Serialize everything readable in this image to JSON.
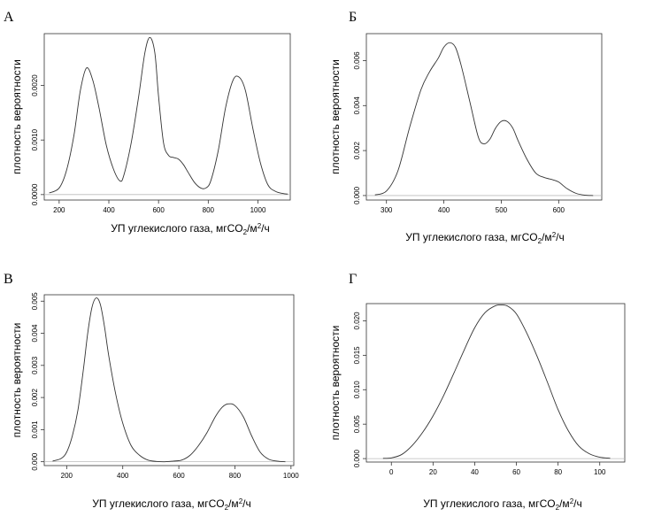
{
  "chart_data": [
    {
      "type": "line",
      "panel_label": "А",
      "xlabel_main": "УП углекислого газа, мгCO",
      "xlabel_sub": "2",
      "xlabel_mid": "/м",
      "xlabel_sup": "2",
      "xlabel_end": "/ч",
      "ylabel": "плотность вероятности",
      "xlim": [
        140,
        1130
      ],
      "ylim": [
        -0.0001,
        0.00295
      ],
      "xticks": [
        "200",
        "400",
        "600",
        "800",
        "1000"
      ],
      "yticks": [
        "0.0000",
        "0.0010",
        "0.0020"
      ],
      "series": [
        {
          "x": [
            160,
            200,
            230,
            260,
            285,
            310,
            335,
            360,
            390,
            420,
            445,
            460,
            490,
            520,
            545,
            565,
            585,
            600,
            620,
            640,
            660,
            680,
            700,
            720,
            745,
            770,
            790,
            810,
            840,
            870,
            900,
            925,
            950,
            980,
            1010,
            1040,
            1070,
            1100,
            1120
          ],
          "y": [
            3e-05,
            0.00012,
            0.00045,
            0.0011,
            0.0019,
            0.00232,
            0.0021,
            0.0016,
            0.0009,
            0.00045,
            0.00025,
            0.00035,
            0.00095,
            0.0018,
            0.0026,
            0.00288,
            0.0026,
            0.0018,
            0.00095,
            0.00072,
            0.00068,
            0.00065,
            0.00055,
            0.0004,
            0.00022,
            0.00012,
            0.00012,
            0.00025,
            0.0008,
            0.0016,
            0.0021,
            0.00215,
            0.0019,
            0.0012,
            0.00058,
            0.00018,
            6e-05,
            2e-05,
            1e-05
          ]
        }
      ]
    },
    {
      "type": "line",
      "panel_label": "Б",
      "xlabel_main": "УП углекислого газа, мгCO",
      "xlabel_sub": "2",
      "xlabel_mid": "/м",
      "xlabel_sup": "2",
      "xlabel_end": "/ч",
      "ylabel": "плотность вероятности",
      "xlim": [
        265,
        675
      ],
      "ylim": [
        -0.0002,
        0.0072
      ],
      "xticks": [
        "300",
        "400",
        "500",
        "600"
      ],
      "yticks": [
        "0.000",
        "0.002",
        "0.004",
        "0.006"
      ],
      "series": [
        {
          "x": [
            280,
            300,
            320,
            340,
            360,
            375,
            390,
            400,
            410,
            420,
            430,
            445,
            460,
            470,
            480,
            490,
            500,
            510,
            520,
            530,
            545,
            560,
            575,
            590,
            600,
            615,
            630,
            645,
            660
          ],
          "y": [
            3e-05,
            0.0002,
            0.0011,
            0.003,
            0.0047,
            0.0055,
            0.0061,
            0.0066,
            0.0068,
            0.0066,
            0.0058,
            0.0042,
            0.0026,
            0.0023,
            0.0025,
            0.003,
            0.0033,
            0.0033,
            0.003,
            0.0024,
            0.0016,
            0.001,
            0.0008,
            0.0007,
            0.0006,
            0.0003,
            0.0001,
            2e-05,
            0.0
          ]
        }
      ]
    },
    {
      "type": "line",
      "panel_label": "В",
      "xlabel_main": "УП углекислого газа, мгCO",
      "xlabel_sub": "2",
      "xlabel_mid": "/м",
      "xlabel_sup": "2",
      "xlabel_end": "/ч",
      "ylabel": "плотность вероятности",
      "xlim": [
        120,
        1010
      ],
      "ylim": [
        -0.00012,
        0.0052
      ],
      "xticks": [
        "200",
        "400",
        "600",
        "800",
        "1000"
      ],
      "yticks": [
        "0.000",
        "0.001",
        "0.002",
        "0.003",
        "0.004",
        "0.005"
      ],
      "series": [
        {
          "x": [
            150,
            180,
            200,
            220,
            240,
            260,
            275,
            290,
            305,
            320,
            335,
            350,
            375,
            400,
            430,
            460,
            490,
            520,
            550,
            580,
            610,
            640,
            670,
            700,
            730,
            755,
            775,
            800,
            830,
            860,
            890,
            920,
            950,
            980
          ],
          "y": [
            2e-05,
            0.0001,
            0.0003,
            0.0008,
            0.0016,
            0.0029,
            0.004,
            0.0048,
            0.0051,
            0.0049,
            0.0042,
            0.0033,
            0.0021,
            0.0012,
            0.0005,
            0.0002,
            5e-05,
            1e-05,
            0.0,
            2e-05,
            5e-05,
            0.0002,
            0.0005,
            0.0009,
            0.0014,
            0.0017,
            0.0018,
            0.00175,
            0.0014,
            0.0008,
            0.0003,
            8e-05,
            2e-05,
            0.0
          ]
        }
      ]
    },
    {
      "type": "line",
      "panel_label": "Г",
      "xlabel_main": "УП углекислого газа, мгCO",
      "xlabel_sub": "2",
      "xlabel_mid": "/м",
      "xlabel_sup": "2",
      "xlabel_end": "/ч",
      "ylabel": "плотность вероятности",
      "xlim": [
        -12,
        112
      ],
      "ylim": [
        -0.0005,
        0.0225
      ],
      "xticks": [
        "0",
        "20",
        "40",
        "60",
        "80",
        "100"
      ],
      "yticks": [
        "0.000",
        "0.005",
        "0.010",
        "0.015",
        "0.020"
      ],
      "series": [
        {
          "x": [
            -4,
            0,
            5,
            10,
            15,
            20,
            25,
            30,
            35,
            40,
            45,
            50,
            53,
            56,
            60,
            65,
            70,
            75,
            80,
            85,
            90,
            95,
            100,
            105
          ],
          "y": [
            3e-05,
            0.0001,
            0.0006,
            0.0019,
            0.0038,
            0.0062,
            0.0091,
            0.0124,
            0.0158,
            0.019,
            0.0212,
            0.0222,
            0.0223,
            0.0221,
            0.021,
            0.0182,
            0.0148,
            0.011,
            0.0071,
            0.004,
            0.0018,
            0.0007,
            0.0002,
            5e-05
          ]
        }
      ]
    }
  ]
}
